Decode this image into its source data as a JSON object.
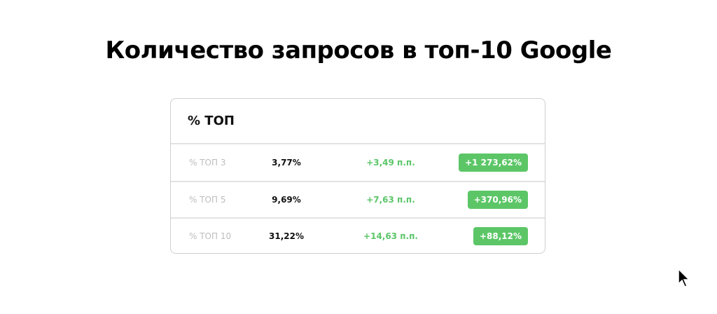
{
  "title": "Количество запросов в топ-10 Google",
  "card": {
    "header": "% ТОП",
    "rows": [
      {
        "label": "% ТОП 3",
        "value": "3,77%",
        "delta": "+3,49 п.п.",
        "change": "+1 273,62%"
      },
      {
        "label": "% ТОП 5",
        "value": "9,69%",
        "delta": "+7,63 п.п.",
        "change": "+370,96%"
      },
      {
        "label": "% ТОП 10",
        "value": "31,22%",
        "delta": "+14,63 п.п.",
        "change": "+88,12%"
      }
    ]
  },
  "colors": {
    "accent_green": "#5cc667",
    "label_gray": "#bdbdbd"
  },
  "icons": {
    "cursor": "mouse-pointer-icon"
  }
}
